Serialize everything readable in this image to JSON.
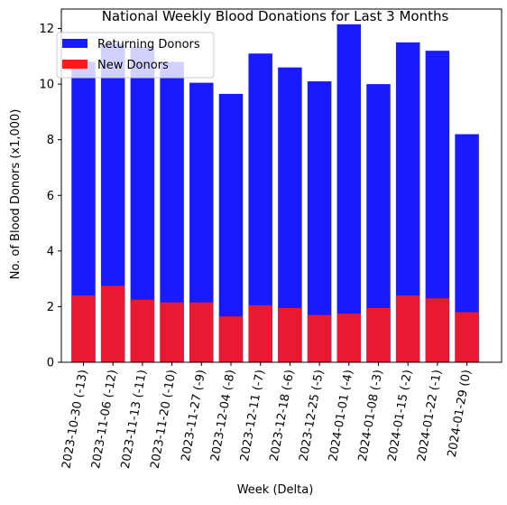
{
  "chart_data": {
    "type": "bar",
    "stacked": false,
    "overlaid": true,
    "title": "National Weekly Blood Donations for Last 3 Months",
    "xlabel": "Week (Delta)",
    "ylabel": "No. of Blood Donors (x1,000)",
    "ylim": [
      0,
      12.7
    ],
    "yticks": [
      0,
      2,
      4,
      6,
      8,
      10,
      12
    ],
    "grid": false,
    "legend_position": "top-left",
    "categories": [
      "2023-10-30 (-13)",
      "2023-11-06 (-12)",
      "2023-11-13 (-11)",
      "2023-11-20 (-10)",
      "2023-11-27 (-9)",
      "2023-12-04 (-8)",
      "2023-12-11 (-7)",
      "2023-12-18 (-6)",
      "2023-12-25 (-5)",
      "2024-01-01 (-4)",
      "2024-01-08 (-3)",
      "2024-01-15 (-2)",
      "2024-01-22 (-1)",
      "2024-01-29 (0)"
    ],
    "series": [
      {
        "name": "Returning Donors",
        "color": "#1a1aff",
        "values": [
          10.8,
          11.45,
          11.35,
          10.8,
          10.05,
          9.65,
          11.1,
          10.6,
          10.1,
          12.15,
          10.0,
          11.5,
          11.2,
          8.2
        ]
      },
      {
        "name": "New Donors",
        "color": "#ff1a1a",
        "values": [
          2.4,
          2.75,
          2.25,
          2.15,
          2.15,
          1.65,
          2.05,
          1.95,
          1.7,
          1.75,
          1.95,
          2.4,
          2.3,
          1.8
        ]
      }
    ]
  }
}
